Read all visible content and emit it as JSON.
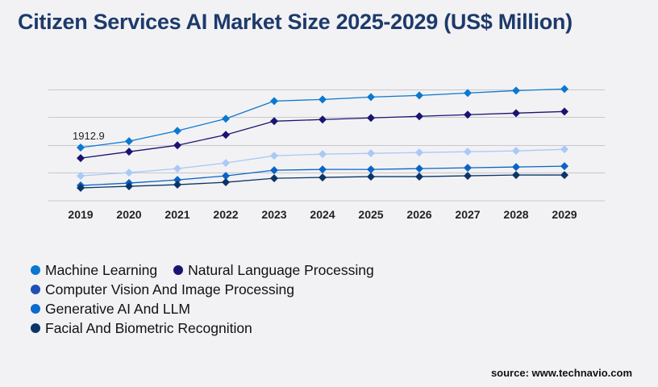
{
  "title": "Citizen Services AI Market Size 2025-2029 (US$ Million)",
  "source": "source: www.technavio.com",
  "chart_data": {
    "type": "line",
    "title": "Citizen Services AI Market Size 2025-2029 (US$ Million)",
    "x": [
      "2019",
      "2020",
      "2021",
      "2022",
      "2023",
      "2024",
      "2025",
      "2026",
      "2027",
      "2028",
      "2029"
    ],
    "ylim": [
      0,
      4200
    ],
    "grid": true,
    "legend": "bottom-left",
    "annotations": [
      {
        "series": 0,
        "index": 0,
        "text": "1912.9"
      }
    ],
    "series": [
      {
        "name": "Machine Learning",
        "color": "#0a78d0",
        "legend_color": "#0a78d0",
        "values": [
          1912.9,
          2140,
          2515,
          2948,
          3584,
          3642,
          3729,
          3786,
          3873,
          3960,
          4018
        ]
      },
      {
        "name": "Natural Language Processing",
        "color": "#1a1470",
        "legend_color": "#1a1470",
        "values": [
          1532,
          1763,
          1994,
          2370,
          2861,
          2919,
          2977,
          3035,
          3093,
          3150,
          3208
        ]
      },
      {
        "name": "Computer Vision And Image Processing",
        "color": "#a9c9f7",
        "legend_color": "#1f4fb5",
        "values": [
          896,
          1012,
          1156,
          1358,
          1618,
          1676,
          1705,
          1734,
          1763,
          1792,
          1850
        ]
      },
      {
        "name": "Generative AI And LLM",
        "color": "#0a64c8",
        "legend_color": "#0a6ad0",
        "values": [
          549,
          636,
          751,
          896,
          1098,
          1127,
          1127,
          1156,
          1185,
          1214,
          1243
        ]
      },
      {
        "name": "Facial And Biometric Recognition",
        "color": "#0b3566",
        "legend_color": "#0b3566",
        "values": [
          462,
          520,
          578,
          665,
          809,
          838,
          867,
          867,
          896,
          925,
          925
        ]
      }
    ]
  }
}
